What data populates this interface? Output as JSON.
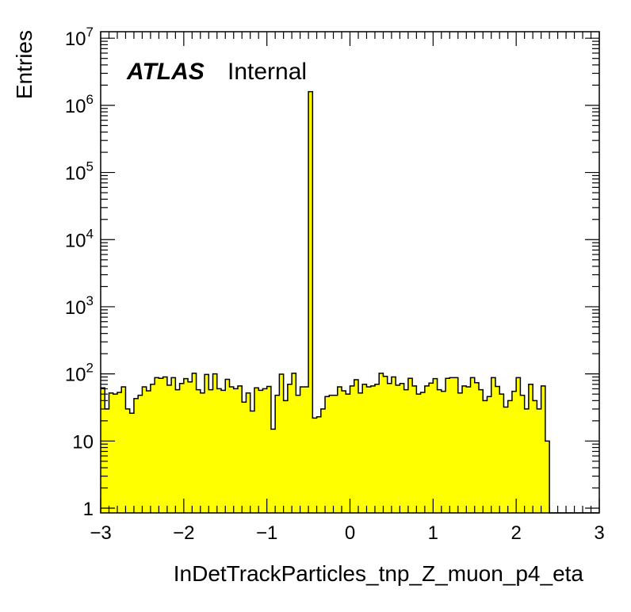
{
  "chart_data": {
    "type": "bar",
    "title": "",
    "xlabel": "InDetTrackParticles_tnp_Z_muon_p4_eta",
    "ylabel": "Entries",
    "atlas_label": "ATLAS",
    "atlas_status": "Internal",
    "xlim": [
      -3,
      3
    ],
    "ylim": [
      0.85,
      12500000
    ],
    "yscale": "log",
    "grid": false,
    "fill_color": "#ffff00",
    "line_color": "#000000",
    "x_ticks": [
      "−3",
      "−2",
      "−1",
      "0",
      "1",
      "2",
      "3"
    ],
    "y_ticks": [
      {
        "value": 1,
        "base": "1",
        "exp": ""
      },
      {
        "value": 10,
        "base": "10",
        "exp": ""
      },
      {
        "value": 100,
        "base": "10",
        "exp": "2"
      },
      {
        "value": 1000,
        "base": "10",
        "exp": "3"
      },
      {
        "value": 10000,
        "base": "10",
        "exp": "4"
      },
      {
        "value": 100000,
        "base": "10",
        "exp": "5"
      },
      {
        "value": 1000000,
        "base": "10",
        "exp": "6"
      },
      {
        "value": 10000000,
        "base": "10",
        "exp": "7"
      }
    ],
    "bin_edges": {
      "start": -3,
      "end": 3,
      "count": 120
    },
    "values": [
      62,
      30,
      52,
      50,
      53,
      64,
      30,
      26,
      43,
      48,
      64,
      56,
      70,
      88,
      86,
      90,
      68,
      88,
      58,
      72,
      85,
      76,
      102,
      58,
      52,
      98,
      58,
      100,
      60,
      57,
      83,
      64,
      60,
      66,
      38,
      52,
      28,
      62,
      57,
      60,
      65,
      15,
      48,
      99,
      40,
      70,
      102,
      48,
      64,
      64,
      1600000,
      22,
      23,
      30,
      46,
      48,
      48,
      64,
      56,
      50,
      66,
      82,
      52,
      70,
      64,
      66,
      70,
      102,
      92,
      72,
      90,
      68,
      72,
      58,
      86,
      66,
      50,
      53,
      66,
      73,
      85,
      58,
      55,
      86,
      88,
      88,
      52,
      66,
      64,
      88,
      74,
      58,
      40,
      46,
      88,
      65,
      50,
      32,
      40,
      55,
      88,
      48,
      30,
      70,
      40,
      30,
      66,
      10,
      0,
      0,
      0,
      0,
      0,
      0,
      0,
      0,
      0,
      0,
      0,
      0
    ]
  }
}
